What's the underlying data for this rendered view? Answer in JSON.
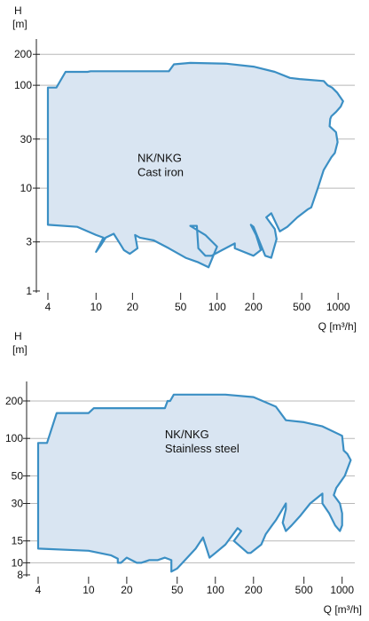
{
  "colors": {
    "fill": "#d9e5f2",
    "stroke": "#3b8fc4",
    "grid": "#b8b8b8",
    "axis": "#222222"
  },
  "chart_data": [
    {
      "type": "area",
      "ylabel": "H",
      "yunit": "[m]",
      "xlabel": "Q [m³/h]",
      "x_scale": "log",
      "y_scale": "log",
      "xlim": [
        4,
        1200
      ],
      "ylim": [
        1,
        250
      ],
      "x_ticks": [
        4,
        10,
        20,
        50,
        100,
        200,
        500,
        1000
      ],
      "y_ticks": [
        1,
        3,
        10,
        30,
        100,
        200
      ],
      "grid_y": [
        3,
        10,
        30,
        100,
        200
      ],
      "annotation": [
        "NK/NKG",
        "Cast iron"
      ],
      "annotation_at": [
        22,
        18
      ],
      "boundary": [
        [
          4,
          95
        ],
        [
          4.7,
          95
        ],
        [
          5.6,
          135
        ],
        [
          8.5,
          135
        ],
        [
          9,
          137
        ],
        [
          40,
          137
        ],
        [
          44,
          160
        ],
        [
          60,
          165
        ],
        [
          120,
          162
        ],
        [
          200,
          152
        ],
        [
          300,
          135
        ],
        [
          400,
          118
        ],
        [
          480,
          115
        ],
        [
          760,
          110
        ],
        [
          820,
          100
        ],
        [
          890,
          95
        ],
        [
          980,
          85
        ],
        [
          1100,
          70
        ],
        [
          1050,
          62
        ],
        [
          960,
          55
        ],
        [
          880,
          50
        ],
        [
          860,
          47
        ],
        [
          850,
          40
        ],
        [
          960,
          35
        ],
        [
          990,
          28
        ],
        [
          940,
          22
        ],
        [
          880,
          20
        ],
        [
          760,
          15
        ],
        [
          680,
          10
        ],
        [
          600,
          6.5
        ],
        [
          560,
          6.2
        ],
        [
          460,
          5.2
        ],
        [
          380,
          4.2
        ],
        [
          330,
          3.8
        ],
        [
          280,
          5.7
        ],
        [
          255,
          5.2
        ],
        [
          300,
          4
        ],
        [
          310,
          3.2
        ],
        [
          280,
          2.1
        ],
        [
          250,
          2.2
        ],
        [
          230,
          2.8
        ],
        [
          200,
          4.2
        ],
        [
          190,
          4.4
        ],
        [
          210,
          3.5
        ],
        [
          230,
          2.5
        ],
        [
          200,
          2.2
        ],
        [
          140,
          2.6
        ],
        [
          140,
          2.9
        ],
        [
          110,
          2.5
        ],
        [
          90,
          2.2
        ],
        [
          80,
          2.2
        ],
        [
          70,
          2.6
        ],
        [
          68,
          4.3
        ],
        [
          60,
          4.3
        ],
        [
          80,
          3.5
        ],
        [
          100,
          2.7
        ],
        [
          85,
          1.7
        ],
        [
          70,
          1.9
        ],
        [
          55,
          2.1
        ],
        [
          40,
          2.6
        ],
        [
          30,
          3.1
        ],
        [
          23,
          3.3
        ],
        [
          21,
          3.5
        ],
        [
          22,
          2.6
        ],
        [
          19,
          2.3
        ],
        [
          17,
          2.5
        ],
        [
          16,
          2.8
        ],
        [
          14,
          3.6
        ],
        [
          12,
          3.3
        ],
        [
          11,
          2.8
        ],
        [
          10,
          2.4
        ],
        [
          11.5,
          3.3
        ],
        [
          10,
          3.5
        ],
        [
          7,
          4.2
        ],
        [
          4,
          4.4
        ]
      ]
    },
    {
      "type": "area",
      "ylabel": "H",
      "yunit": "[m]",
      "xlabel": "Q [m³/h]",
      "x_scale": "log",
      "y_scale": "log",
      "xlim": [
        4,
        1200
      ],
      "ylim": [
        8,
        260
      ],
      "x_ticks": [
        4,
        10,
        20,
        50,
        100,
        200,
        500,
        1000
      ],
      "y_ticks": [
        8,
        10,
        15,
        30,
        50,
        100,
        200
      ],
      "grid_y": [
        10,
        15,
        30,
        50,
        100,
        200
      ],
      "annotation": [
        "NK/NKG",
        "Stainless steel"
      ],
      "annotation_at": [
        40,
        100
      ],
      "boundary": [
        [
          4,
          92
        ],
        [
          4.7,
          92
        ],
        [
          5.6,
          160
        ],
        [
          10,
          160
        ],
        [
          11,
          175
        ],
        [
          40,
          175
        ],
        [
          42,
          200
        ],
        [
          44,
          200
        ],
        [
          47,
          225
        ],
        [
          120,
          225
        ],
        [
          200,
          215
        ],
        [
          300,
          180
        ],
        [
          360,
          140
        ],
        [
          500,
          135
        ],
        [
          700,
          125
        ],
        [
          1000,
          105
        ],
        [
          1030,
          80
        ],
        [
          1100,
          75
        ],
        [
          1170,
          67
        ],
        [
          1050,
          50
        ],
        [
          900,
          40
        ],
        [
          860,
          35
        ],
        [
          960,
          30
        ],
        [
          1000,
          25
        ],
        [
          1000,
          20
        ],
        [
          960,
          18
        ],
        [
          880,
          20
        ],
        [
          790,
          25
        ],
        [
          700,
          30
        ],
        [
          700,
          36
        ],
        [
          560,
          30
        ],
        [
          470,
          24
        ],
        [
          400,
          20
        ],
        [
          360,
          18
        ],
        [
          340,
          21
        ],
        [
          360,
          27
        ],
        [
          360,
          30
        ],
        [
          300,
          22
        ],
        [
          280,
          20
        ],
        [
          250,
          17
        ],
        [
          230,
          14
        ],
        [
          190,
          12
        ],
        [
          180,
          12
        ],
        [
          140,
          15
        ],
        [
          160,
          18
        ],
        [
          150,
          19
        ],
        [
          120,
          14
        ],
        [
          100,
          12
        ],
        [
          90,
          11
        ],
        [
          80,
          16
        ],
        [
          70,
          13
        ],
        [
          60,
          11
        ],
        [
          50,
          9
        ],
        [
          45,
          8.5
        ],
        [
          45,
          10.5
        ],
        [
          40,
          11
        ],
        [
          35,
          10.5
        ],
        [
          30,
          10.5
        ],
        [
          26,
          10
        ],
        [
          24,
          10
        ],
        [
          20,
          11
        ],
        [
          18,
          10
        ],
        [
          17,
          10
        ],
        [
          17,
          10.8
        ],
        [
          15,
          11.5
        ],
        [
          10,
          12.5
        ],
        [
          4,
          13
        ]
      ]
    }
  ]
}
